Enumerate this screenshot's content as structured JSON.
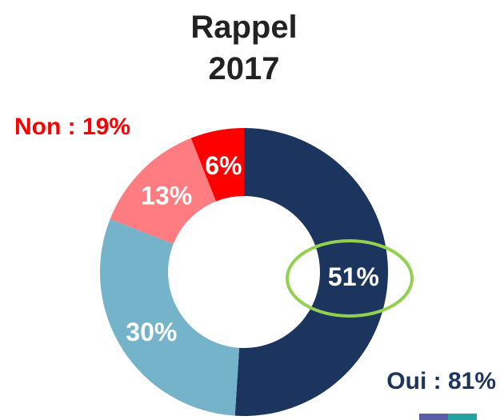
{
  "chart_data": {
    "type": "donut",
    "title": "Rappel 2017",
    "categories": [
      "51%",
      "30%",
      "13%",
      "6%"
    ],
    "values": [
      51,
      30,
      13,
      6
    ],
    "value_labels": [
      "51%",
      "30%",
      "13%",
      "6%"
    ],
    "colors": [
      "#1c355e",
      "#74b3c9",
      "#ff7c80",
      "#ff0000"
    ],
    "annotations": [
      {
        "text": "Non : 19%",
        "color": "#ff0000"
      },
      {
        "text": "Oui : 81%",
        "color": "#1c355e"
      }
    ]
  }
}
